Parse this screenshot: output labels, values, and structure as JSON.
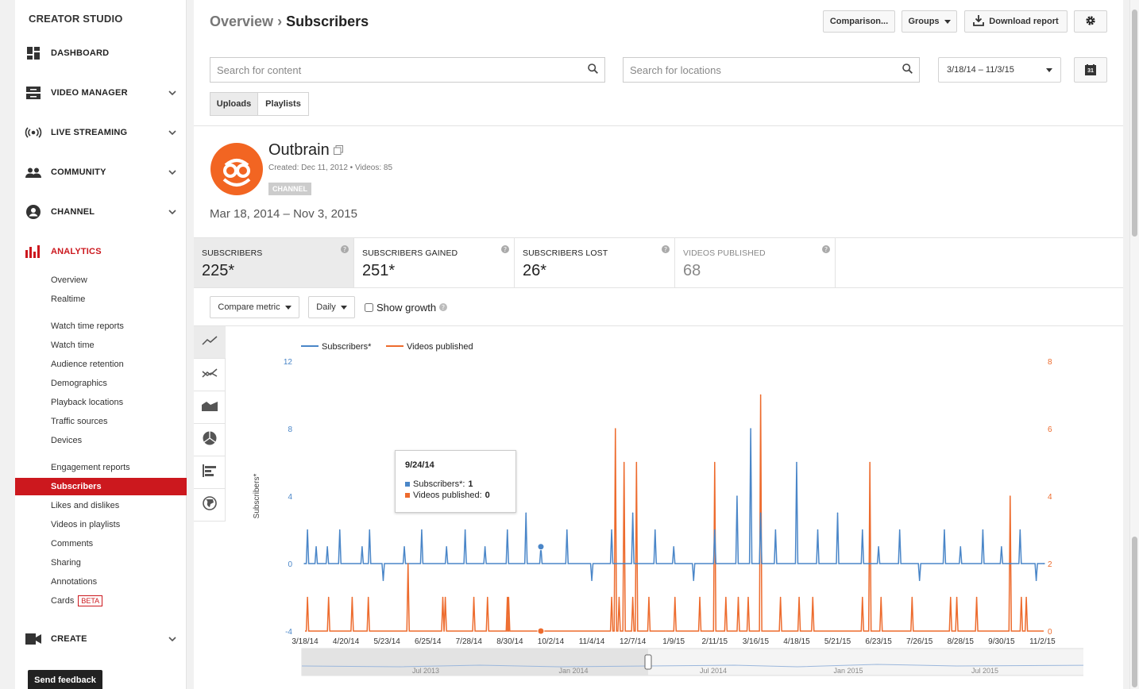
{
  "sidebar": {
    "brand": "CREATOR STUDIO",
    "nav": [
      {
        "label": "DASHBOARD",
        "icon": "dashboard-icon",
        "chevron": false
      },
      {
        "label": "VIDEO MANAGER",
        "icon": "video-manager-icon",
        "chevron": true
      },
      {
        "label": "LIVE STREAMING",
        "icon": "live-streaming-icon",
        "chevron": true
      },
      {
        "label": "COMMUNITY",
        "icon": "community-icon",
        "chevron": true
      },
      {
        "label": "CHANNEL",
        "icon": "channel-icon",
        "chevron": true
      },
      {
        "label": "ANALYTICS",
        "icon": "analytics-icon",
        "chevron": false,
        "active": true
      }
    ],
    "analytics_items": [
      "Overview",
      "Realtime"
    ],
    "watch_time_items": [
      "Watch time reports",
      "Watch time",
      "Audience retention",
      "Demographics",
      "Playback locations",
      "Traffic sources",
      "Devices"
    ],
    "engagement_items": [
      "Engagement reports",
      "Subscribers",
      "Likes and dislikes",
      "Videos in playlists",
      "Comments",
      "Sharing",
      "Annotations",
      "Cards"
    ],
    "active_item": "Subscribers",
    "beta_label": "BETA",
    "create_label": "CREATE",
    "feedback_label": "Send feedback"
  },
  "header": {
    "crumb_parent": "Overview",
    "crumb_sep": " › ",
    "crumb_current": "Subscribers",
    "comparison_label": "Comparison...",
    "groups_label": "Groups",
    "download_label": "Download report"
  },
  "filters": {
    "content_placeholder": "Search for content",
    "locations_placeholder": "Search for locations",
    "date_select": "3/18/14 – 11/3/15",
    "calendar_day": "31",
    "uploads_label": "Uploads",
    "playlists_label": "Playlists"
  },
  "channel": {
    "name": "Outbrain",
    "created": "Created: Dec 11, 2012",
    "videos": "Videos: 85",
    "meta_sep": "•",
    "tag": "CHANNEL",
    "range": "Mar 18, 2014 – Nov 3, 2015",
    "logo_color": "#f26522"
  },
  "metrics": [
    {
      "title": "SUBSCRIBERS",
      "value": "225*",
      "active": true
    },
    {
      "title": "SUBSCRIBERS GAINED",
      "value": "251*"
    },
    {
      "title": "SUBSCRIBERS LOST",
      "value": "26*"
    },
    {
      "title": "VIDEOS PUBLISHED",
      "value": "68",
      "muted": true
    }
  ],
  "controls": {
    "compare_label": "Compare metric",
    "interval_label": "Daily",
    "growth_label": "Show growth"
  },
  "tooltip": {
    "date": "9/24/14",
    "sub_label": "Subscribers*:",
    "sub_value": "1",
    "vid_label": "Videos published:",
    "vid_value": "0"
  },
  "chart_data": {
    "type": "line",
    "legend": [
      "Subscribers*",
      "Videos published"
    ],
    "legend_position": "top-left",
    "ylabel_left": "Subscribers*",
    "ylabel_right": "Videos published",
    "y_left_ticks": [
      "12",
      "8",
      "4",
      "0",
      "-4"
    ],
    "y_left_range": [
      -4,
      12
    ],
    "y_right_ticks": [
      "8",
      "6",
      "4",
      "2",
      "0"
    ],
    "y_right_range": [
      0,
      8
    ],
    "x_ticks": [
      "3/18/14",
      "4/20/14",
      "5/23/14",
      "6/25/14",
      "7/28/14",
      "8/30/14",
      "10/2/14",
      "11/4/14",
      "12/7/14",
      "1/9/15",
      "2/11/15",
      "3/16/15",
      "4/18/15",
      "5/21/15",
      "6/23/15",
      "7/26/15",
      "8/28/15",
      "9/30/15",
      "11/2/15"
    ],
    "x_range": [
      "3/18/14",
      "11/3/15"
    ],
    "colors": {
      "subscribers": "#4a86c8",
      "videos": "#ed6b2d"
    },
    "subscriber_spikes": [
      {
        "date": "3/18/14",
        "value": 0
      },
      {
        "date": "3/20/14",
        "value": 2
      },
      {
        "date": "3/27/14",
        "value": 1
      },
      {
        "date": "4/5/14",
        "value": 1
      },
      {
        "date": "4/15/14",
        "value": 2
      },
      {
        "date": "5/3/14",
        "value": 1
      },
      {
        "date": "5/9/14",
        "value": 2
      },
      {
        "date": "5/20/14",
        "value": -1
      },
      {
        "date": "6/6/14",
        "value": 1
      },
      {
        "date": "6/20/14",
        "value": 2
      },
      {
        "date": "7/10/14",
        "value": 1
      },
      {
        "date": "7/25/14",
        "value": 2
      },
      {
        "date": "8/10/14",
        "value": 1
      },
      {
        "date": "8/28/14",
        "value": 2
      },
      {
        "date": "9/12/14",
        "value": 3
      },
      {
        "date": "9/24/14",
        "value": 1
      },
      {
        "date": "10/15/14",
        "value": 2
      },
      {
        "date": "11/4/14",
        "value": -1
      },
      {
        "date": "11/20/14",
        "value": 2
      },
      {
        "date": "12/7/14",
        "value": 3
      },
      {
        "date": "12/25/14",
        "value": 2
      },
      {
        "date": "1/9/15",
        "value": 1
      },
      {
        "date": "1/25/15",
        "value": -1
      },
      {
        "date": "2/11/15",
        "value": 2
      },
      {
        "date": "3/1/15",
        "value": 4
      },
      {
        "date": "3/12/15",
        "value": 8
      },
      {
        "date": "3/20/15",
        "value": 3
      },
      {
        "date": "4/1/15",
        "value": 2
      },
      {
        "date": "4/18/15",
        "value": 6
      },
      {
        "date": "5/5/15",
        "value": 2
      },
      {
        "date": "5/21/15",
        "value": 3
      },
      {
        "date": "6/10/15",
        "value": 2
      },
      {
        "date": "6/23/15",
        "value": 1
      },
      {
        "date": "7/10/15",
        "value": 2
      },
      {
        "date": "7/26/15",
        "value": -1
      },
      {
        "date": "8/15/15",
        "value": 2
      },
      {
        "date": "8/28/15",
        "value": 1
      },
      {
        "date": "9/15/15",
        "value": 2
      },
      {
        "date": "9/30/15",
        "value": 1
      },
      {
        "date": "10/15/15",
        "value": 2
      },
      {
        "date": "10/28/15",
        "value": -1
      },
      {
        "date": "11/3/15",
        "value": 0
      }
    ],
    "video_spikes": [
      {
        "date": "3/20/14",
        "value": 1
      },
      {
        "date": "4/6/14",
        "value": 1
      },
      {
        "date": "4/25/14",
        "value": 1
      },
      {
        "date": "5/8/14",
        "value": 1
      },
      {
        "date": "6/9/14",
        "value": 2
      },
      {
        "date": "7/7/14",
        "value": 1
      },
      {
        "date": "7/9/14",
        "value": 1
      },
      {
        "date": "8/1/14",
        "value": 1
      },
      {
        "date": "8/12/14",
        "value": 1
      },
      {
        "date": "8/28/14",
        "value": 1
      },
      {
        "date": "8/29/14",
        "value": 1
      },
      {
        "date": "11/20/14",
        "value": 1
      },
      {
        "date": "11/23/14",
        "value": 6
      },
      {
        "date": "11/26/14",
        "value": 1
      },
      {
        "date": "11/30/14",
        "value": 5
      },
      {
        "date": "12/7/14",
        "value": 1
      },
      {
        "date": "12/10/14",
        "value": 5
      },
      {
        "date": "12/20/14",
        "value": 1
      },
      {
        "date": "1/10/15",
        "value": 1
      },
      {
        "date": "1/30/15",
        "value": 1
      },
      {
        "date": "2/11/15",
        "value": 5
      },
      {
        "date": "2/20/15",
        "value": 1
      },
      {
        "date": "3/2/15",
        "value": 1
      },
      {
        "date": "3/10/15",
        "value": 1
      },
      {
        "date": "3/20/15",
        "value": 7
      },
      {
        "date": "4/5/15",
        "value": 1
      },
      {
        "date": "4/20/15",
        "value": 1
      },
      {
        "date": "5/1/15",
        "value": 1
      },
      {
        "date": "6/10/15",
        "value": 1
      },
      {
        "date": "6/16/15",
        "value": 5
      },
      {
        "date": "6/25/15",
        "value": 1
      },
      {
        "date": "7/20/15",
        "value": 1
      },
      {
        "date": "8/20/15",
        "value": 1
      },
      {
        "date": "8/25/15",
        "value": 1
      },
      {
        "date": "9/10/15",
        "value": 1
      },
      {
        "date": "10/7/15",
        "value": 4
      },
      {
        "date": "10/16/15",
        "value": 1
      },
      {
        "date": "10/20/15",
        "value": 1
      }
    ],
    "navigator_labels": [
      "Jul 2013",
      "Jan 2014",
      "Jul 2014",
      "Jan 2015",
      "Jul 2015"
    ],
    "highlighted_date": "9/24/14"
  }
}
